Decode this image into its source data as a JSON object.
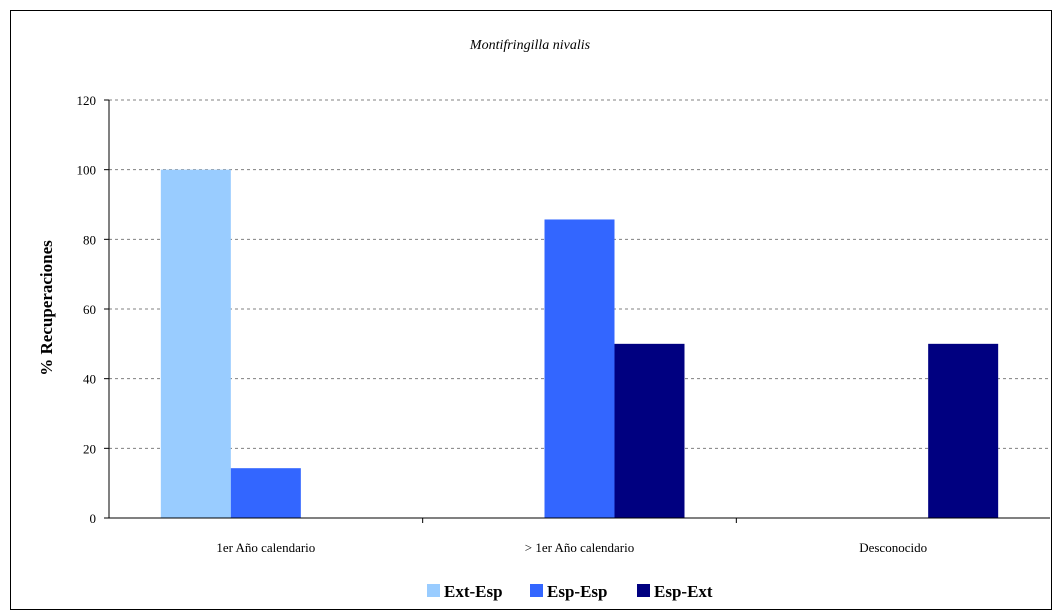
{
  "chart_data": {
    "type": "bar",
    "title": "Montifringilla nivalis",
    "xlabel": "",
    "ylabel": "% Recuperaciones",
    "ylim": [
      0,
      120
    ],
    "yticks": [
      0,
      20,
      40,
      60,
      80,
      100,
      120
    ],
    "grid": true,
    "legend_position": "bottom",
    "categories": [
      "1er Año calendario",
      "> 1er Año calendario",
      "Desconocido"
    ],
    "series": [
      {
        "name": "Ext-Esp",
        "color": "#99ccff",
        "values": [
          100,
          null,
          null
        ]
      },
      {
        "name": "Esp-Esp",
        "color": "#3366ff",
        "values": [
          14.3,
          85.7,
          null
        ]
      },
      {
        "name": "Esp-Ext",
        "color": "#000080",
        "values": [
          null,
          50,
          50
        ]
      }
    ]
  }
}
